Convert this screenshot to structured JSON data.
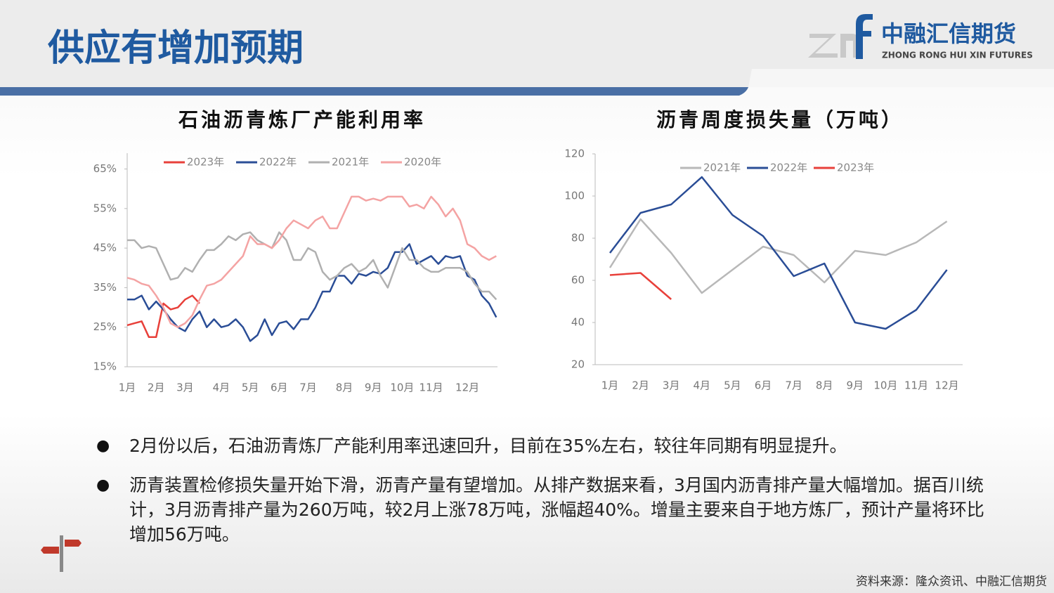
{
  "header": {
    "title": "供应有增加预期",
    "logo_cn": "中融汇信期货",
    "logo_en": "ZHONG RONG HUI XIN FUTURES"
  },
  "chart_data": [
    {
      "type": "line",
      "title": "石油沥青炼厂产能利用率",
      "categories": [
        "1月",
        null,
        null,
        null,
        "2月",
        null,
        null,
        null,
        "3月",
        null,
        null,
        null,
        null,
        "4月",
        null,
        null,
        null,
        "5月",
        null,
        null,
        null,
        "6月",
        null,
        null,
        null,
        "7月",
        null,
        null,
        null,
        null,
        "8月",
        null,
        null,
        null,
        "9月",
        null,
        null,
        null,
        "10月",
        null,
        null,
        null,
        "11月",
        null,
        null,
        null,
        null,
        "12月",
        null,
        null,
        null,
        null
      ],
      "ylim": [
        15,
        69
      ],
      "yticks": [
        {
          "value": 15,
          "label": "15%"
        },
        {
          "value": 25,
          "label": "25%"
        },
        {
          "value": 35,
          "label": "35%"
        },
        {
          "value": 45,
          "label": "45%"
        },
        {
          "value": 55,
          "label": "55%"
        },
        {
          "value": 65,
          "label": "65%"
        }
      ],
      "grid": false,
      "series": [
        {
          "name": "2023年",
          "color": "#e8403a",
          "values": [
            25.5,
            26,
            26.5,
            22.5,
            22.5,
            31,
            29.5,
            30,
            32,
            33,
            31,
            null,
            null,
            null,
            null,
            null,
            null,
            null,
            null,
            null,
            null,
            null,
            null,
            null,
            null,
            null,
            null,
            null,
            null,
            null,
            null,
            null,
            null,
            null,
            null,
            null,
            null,
            null,
            null,
            null,
            null,
            null,
            null,
            null,
            null,
            null,
            null,
            null,
            null,
            null,
            null,
            null
          ]
        },
        {
          "name": "2022年",
          "color": "#2a4d96",
          "values": [
            32,
            32,
            33,
            29.5,
            31.5,
            29.5,
            27,
            25,
            24,
            27,
            29,
            25,
            27,
            25,
            25.5,
            27,
            25,
            21.5,
            23,
            27,
            23,
            26,
            26.5,
            24.5,
            27,
            27,
            30,
            34,
            34,
            38,
            38,
            36,
            38.5,
            38,
            39,
            38.5,
            40,
            44,
            44,
            46,
            41,
            42,
            43,
            41,
            43,
            42.5,
            43,
            38,
            37,
            33,
            31,
            27.5
          ]
        },
        {
          "name": "2021年",
          "color": "#b0b0b0",
          "values": [
            47,
            47,
            45,
            45.5,
            45,
            41,
            37,
            37.5,
            40,
            39,
            42,
            44.5,
            44.5,
            46,
            48,
            47,
            48.5,
            49,
            47,
            46,
            45,
            49,
            47,
            42,
            42,
            45,
            44,
            39,
            37,
            38,
            40,
            41,
            39,
            40,
            42,
            38,
            35,
            40,
            45,
            42,
            42,
            40,
            39,
            39,
            40,
            40,
            40,
            39,
            36,
            34,
            34,
            32
          ]
        },
        {
          "name": "2020年",
          "color": "#f4a3a3",
          "values": [
            37.5,
            37,
            36,
            35.5,
            33,
            30,
            26,
            25,
            26,
            28,
            32,
            35.5,
            36,
            37,
            39,
            41,
            43,
            48,
            46,
            46,
            45,
            47,
            50,
            52,
            51,
            50,
            52,
            53,
            50,
            50,
            54,
            58,
            58,
            57,
            57.5,
            57,
            58,
            58,
            58,
            55.5,
            56,
            55,
            58,
            56,
            53,
            55,
            52,
            46,
            45,
            43,
            42,
            43
          ]
        }
      ]
    },
    {
      "type": "line",
      "title": "沥青周度损失量（万吨）",
      "categories": [
        "1月",
        "2月",
        "3月",
        "4月",
        "5月",
        "6月",
        "7月",
        "8月",
        "9月",
        "10月",
        "11月",
        "12月"
      ],
      "ylim": [
        20,
        120
      ],
      "yticks": [
        20,
        40,
        60,
        80,
        100,
        120
      ],
      "grid": false,
      "series": [
        {
          "name": "2021年",
          "color": "#b8b8b8",
          "values": [
            66,
            89,
            73,
            54,
            65,
            76,
            72,
            59,
            74,
            72,
            78,
            88
          ]
        },
        {
          "name": "2022年",
          "color": "#2a4d96",
          "values": [
            73,
            92,
            96,
            109,
            91,
            81,
            62,
            68,
            40,
            37,
            46,
            65
          ]
        },
        {
          "name": "2023年",
          "color": "#e8403a",
          "values": [
            62.5,
            63.5,
            51,
            null,
            null,
            null,
            null,
            null,
            null,
            null,
            null,
            null
          ]
        }
      ]
    }
  ],
  "bullets": [
    "2月份以后，石油沥青炼厂产能利用率迅速回升，目前在35%左右，较往年同期有明显提升。",
    "沥青装置检修损失量开始下滑，沥青产量有望增加。从排产数据来看，3月国内沥青排产量大幅增加。据百川统计，3月沥青排产量为260万吨，较2月上涨78万吨，涨幅超40%。增量主要来自于地方炼厂，预计产量将环比增加56万吨。"
  ],
  "source": "资料来源：隆众资讯、中融汇信期货"
}
